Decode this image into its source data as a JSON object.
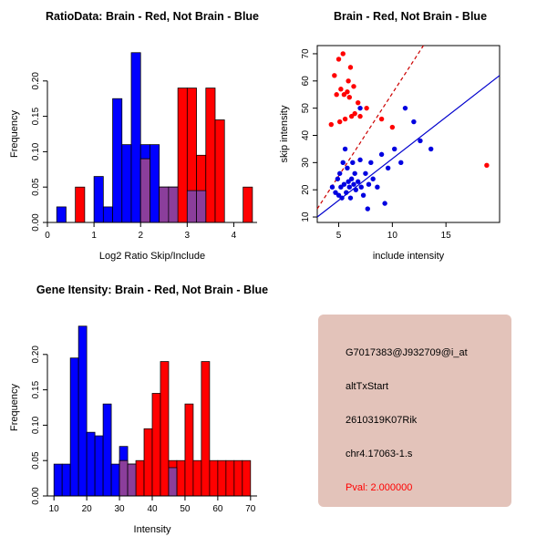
{
  "figure": {
    "background": "#FFFFFF",
    "info_panel": {
      "background": "#E3C3BA",
      "lines": [
        "G7017383@J932709@i_at",
        "altTxStart",
        "2610319K07Rik",
        "chr4.17063-1.s"
      ],
      "pval": "Pval: 2.000000",
      "pval_color": "#FF0000"
    }
  },
  "chart_data": [
    {
      "id": "ratio_hist",
      "type": "bar",
      "title": "RatioData: Brain - Red, Not Brain - Blue",
      "xlabel": "Log2 Ratio Skip/Include",
      "ylabel": "Frequency",
      "xlim": [
        0,
        4.5
      ],
      "ylim": [
        0,
        0.25
      ],
      "grid": false,
      "bin_width": 0.2,
      "xticks": [
        {
          "v": 0,
          "t": "0"
        },
        {
          "v": 1,
          "t": "1"
        },
        {
          "v": 2,
          "t": "2"
        },
        {
          "v": 3,
          "t": "3"
        },
        {
          "v": 4,
          "t": "4"
        }
      ],
      "yticks": [
        {
          "v": 0,
          "t": "0.00"
        },
        {
          "v": 0.05,
          "t": "0.05"
        },
        {
          "v": 0.1,
          "t": "0.10"
        },
        {
          "v": 0.15,
          "t": "0.15"
        },
        {
          "v": 0.2,
          "t": "0.20"
        }
      ],
      "series": [
        {
          "name": "not-brain-blue",
          "color": "#0000FF",
          "bins": [
            [
              0.2,
              0.022
            ],
            [
              1.0,
              0.065
            ],
            [
              1.2,
              0.022
            ],
            [
              1.4,
              0.175
            ],
            [
              1.6,
              0.11
            ],
            [
              1.8,
              0.24
            ],
            [
              2.0,
              0.11
            ],
            [
              2.2,
              0.11
            ],
            [
              2.4,
              0.05
            ],
            [
              2.6,
              0.05
            ],
            [
              3.0,
              0.045
            ],
            [
              3.2,
              0.045
            ]
          ]
        },
        {
          "name": "brain-red",
          "color": "#FF0000",
          "bins": [
            [
              0.6,
              0.05
            ],
            [
              2.0,
              0.09
            ],
            [
              2.4,
              0.05
            ],
            [
              2.6,
              0.05
            ],
            [
              2.8,
              0.19
            ],
            [
              3.0,
              0.19
            ],
            [
              3.2,
              0.095
            ],
            [
              3.4,
              0.19
            ],
            [
              3.6,
              0.145
            ],
            [
              4.2,
              0.05
            ]
          ]
        },
        {
          "name": "overlap-purple",
          "color": "#8B3E9B",
          "bins": [
            [
              2.0,
              0.09
            ],
            [
              2.4,
              0.05
            ],
            [
              2.6,
              0.05
            ],
            [
              3.0,
              0.045
            ],
            [
              3.2,
              0.045
            ]
          ]
        }
      ]
    },
    {
      "id": "scatter",
      "type": "scatter",
      "title": "Brain - Red, Not Brain - Blue",
      "xlabel": "include intensity",
      "ylabel": "skip intensity",
      "xlim": [
        3,
        20
      ],
      "ylim": [
        8,
        73
      ],
      "grid": false,
      "margins": {
        "l": 48,
        "r": 52,
        "t": 50,
        "b": 56
      },
      "xticks": [
        {
          "v": 5,
          "t": "5"
        },
        {
          "v": 10,
          "t": "10"
        },
        {
          "v": 15,
          "t": "15"
        }
      ],
      "yticks": [
        {
          "v": 10,
          "t": "10"
        },
        {
          "v": 20,
          "t": "20"
        },
        {
          "v": 30,
          "t": "30"
        },
        {
          "v": 40,
          "t": "40"
        },
        {
          "v": 50,
          "t": "50"
        },
        {
          "v": 60,
          "t": "60"
        },
        {
          "v": 70,
          "t": "70"
        }
      ],
      "series": [
        {
          "name": "brain-red",
          "color": "#FF0000",
          "points": [
            [
              4.3,
              44
            ],
            [
              4.6,
              62
            ],
            [
              4.8,
              55
            ],
            [
              5.0,
              68
            ],
            [
              5.1,
              45
            ],
            [
              5.2,
              57
            ],
            [
              5.4,
              70
            ],
            [
              5.5,
              55
            ],
            [
              5.6,
              46
            ],
            [
              5.8,
              56
            ],
            [
              5.9,
              60
            ],
            [
              6.0,
              54
            ],
            [
              6.1,
              65
            ],
            [
              6.2,
              47
            ],
            [
              6.4,
              58
            ],
            [
              6.5,
              48
            ],
            [
              6.8,
              52
            ],
            [
              7.0,
              47
            ],
            [
              7.6,
              50
            ],
            [
              9.0,
              46
            ],
            [
              10.0,
              43
            ],
            [
              18.8,
              29
            ]
          ]
        },
        {
          "name": "not-brain-blue",
          "color": "#0000E0",
          "points": [
            [
              4.4,
              21
            ],
            [
              4.7,
              19
            ],
            [
              4.9,
              24
            ],
            [
              5.0,
              18
            ],
            [
              5.1,
              26
            ],
            [
              5.2,
              21
            ],
            [
              5.3,
              17
            ],
            [
              5.4,
              30
            ],
            [
              5.5,
              22
            ],
            [
              5.6,
              35
            ],
            [
              5.7,
              19
            ],
            [
              5.8,
              28
            ],
            [
              5.9,
              23
            ],
            [
              6.0,
              21
            ],
            [
              6.1,
              17
            ],
            [
              6.2,
              24
            ],
            [
              6.3,
              30
            ],
            [
              6.4,
              22
            ],
            [
              6.5,
              26
            ],
            [
              6.6,
              20
            ],
            [
              6.8,
              23
            ],
            [
              7.0,
              50
            ],
            [
              7.0,
              31
            ],
            [
              7.1,
              21
            ],
            [
              7.3,
              18
            ],
            [
              7.5,
              26
            ],
            [
              7.7,
              13
            ],
            [
              7.8,
              22
            ],
            [
              8.0,
              30
            ],
            [
              8.2,
              24
            ],
            [
              8.6,
              21
            ],
            [
              9.0,
              33
            ],
            [
              9.3,
              15
            ],
            [
              9.6,
              28
            ],
            [
              10.2,
              35
            ],
            [
              10.8,
              30
            ],
            [
              11.2,
              50
            ],
            [
              12.0,
              45
            ],
            [
              12.6,
              38
            ],
            [
              13.6,
              35
            ]
          ]
        }
      ],
      "lines": [
        {
          "name": "red-dashed-fit-line",
          "color": "#CC0000",
          "dash": true,
          "x1": 3,
          "y1": 13,
          "x2": 12.9,
          "y2": 73
        },
        {
          "name": "blue-solid-fit-line",
          "color": "#0000CD",
          "dash": false,
          "x1": 3,
          "y1": 10,
          "x2": 20,
          "y2": 62
        }
      ]
    },
    {
      "id": "gene_hist",
      "type": "bar",
      "title": "Gene Itensity: Brain - Red, Not Brain - Blue",
      "xlabel": "Intensity",
      "ylabel": "Frequency",
      "xlim": [
        8,
        72
      ],
      "ylim": [
        0,
        0.25
      ],
      "grid": false,
      "bin_width": 2.5,
      "xticks": [
        {
          "v": 10,
          "t": "10"
        },
        {
          "v": 20,
          "t": "20"
        },
        {
          "v": 30,
          "t": "30"
        },
        {
          "v": 40,
          "t": "40"
        },
        {
          "v": 50,
          "t": "50"
        },
        {
          "v": 60,
          "t": "60"
        },
        {
          "v": 70,
          "t": "70"
        }
      ],
      "yticks": [
        {
          "v": 0,
          "t": "0.00"
        },
        {
          "v": 0.05,
          "t": "0.05"
        },
        {
          "v": 0.1,
          "t": "0.10"
        },
        {
          "v": 0.15,
          "t": "0.15"
        },
        {
          "v": 0.2,
          "t": "0.20"
        }
      ],
      "series": [
        {
          "name": "not-brain-blue",
          "color": "#0000FF",
          "bins": [
            [
              10,
              0.045
            ],
            [
              12.5,
              0.045
            ],
            [
              15,
              0.195
            ],
            [
              17.5,
              0.24
            ],
            [
              20,
              0.09
            ],
            [
              22.5,
              0.085
            ],
            [
              25,
              0.13
            ],
            [
              27.5,
              0.045
            ],
            [
              30,
              0.07
            ],
            [
              32.5,
              0.045
            ],
            [
              45,
              0.04
            ]
          ]
        },
        {
          "name": "brain-red",
          "color": "#FF0000",
          "bins": [
            [
              30,
              0.05
            ],
            [
              32.5,
              0.045
            ],
            [
              35,
              0.05
            ],
            [
              37.5,
              0.095
            ],
            [
              40,
              0.145
            ],
            [
              42.5,
              0.19
            ],
            [
              45,
              0.05
            ],
            [
              47.5,
              0.05
            ],
            [
              50,
              0.13
            ],
            [
              52.5,
              0.05
            ],
            [
              55,
              0.19
            ],
            [
              57.5,
              0.05
            ],
            [
              60,
              0.05
            ],
            [
              62.5,
              0.05
            ],
            [
              65,
              0.05
            ],
            [
              67.5,
              0.05
            ]
          ]
        },
        {
          "name": "overlap-purple",
          "color": "#8B3E9B",
          "bins": [
            [
              30,
              0.05
            ],
            [
              32.5,
              0.045
            ],
            [
              45,
              0.04
            ]
          ]
        }
      ]
    }
  ]
}
